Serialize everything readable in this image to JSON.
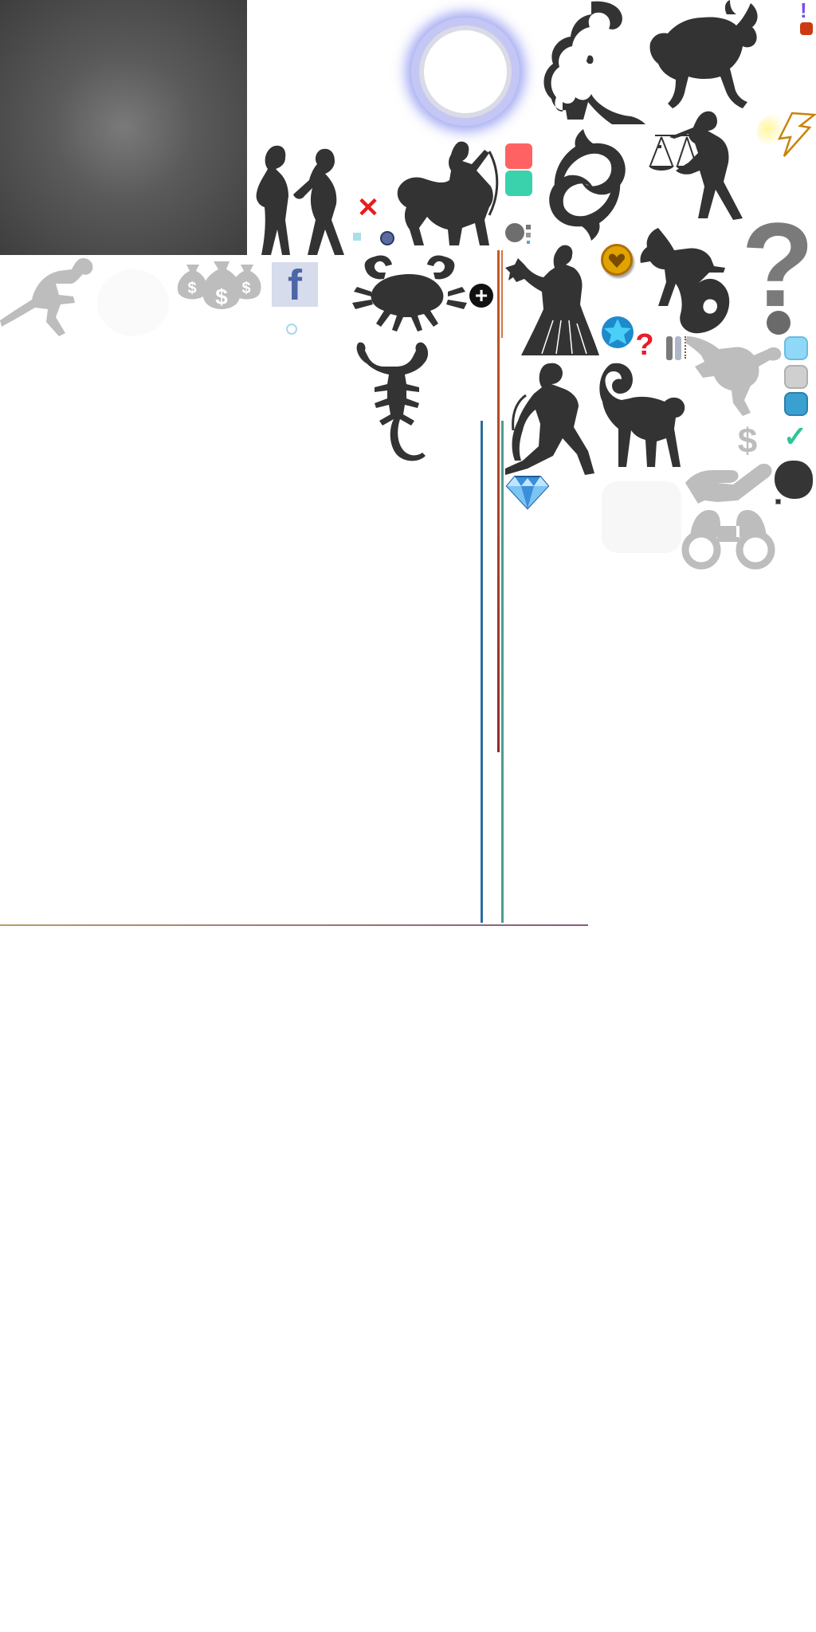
{
  "sheet": {
    "kind": "game sprite atlas",
    "background": "#ffffff"
  },
  "icons": {
    "facebook_glyph": "f",
    "question_glyph": "?",
    "check_glyph": "✓",
    "dollar_glyph": "$",
    "plus_glyph": "+",
    "close_glyph": "✕",
    "exclaim_glyph": "!"
  },
  "zodiac": [
    "gemini-icon",
    "sagittarius-icon",
    "leo-icon",
    "taurus-icon",
    "pisces-icon",
    "libra-icon",
    "cancer-icon",
    "virgo-icon",
    "capricorn-icon",
    "scorpio-icon",
    "aquarius-icon",
    "aries-icon"
  ],
  "colors": {
    "silhouette": "#333333",
    "silhouette_light": "#bdbdbd",
    "accent_red": "#ff6262",
    "accent_teal": "#3ad1ad",
    "accent_blue": "#3aa0d0",
    "accent_light_blue": "#8fd8f8",
    "gold": "#e0a400",
    "purple": "#7a4bea",
    "orange_red": "#cc3a12",
    "check_green": "#2fc39a"
  }
}
